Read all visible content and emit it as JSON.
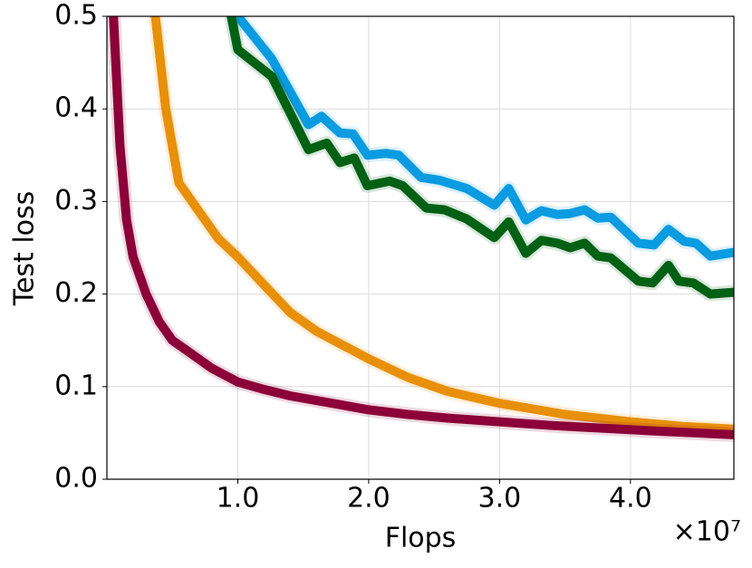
{
  "chart_data": {
    "type": "line",
    "xlabel": "Flops",
    "ylabel": "Test loss",
    "x_offset_label": "×10⁷",
    "xlim": [
      0,
      4.79
    ],
    "ylim": [
      0,
      0.5
    ],
    "xticks": [
      {
        "value": 1,
        "label": "1.0"
      },
      {
        "value": 2,
        "label": "2.0"
      },
      {
        "value": 3,
        "label": "3.0"
      },
      {
        "value": 4,
        "label": "4.0"
      }
    ],
    "yticks": [
      {
        "value": 0,
        "label": "0.0"
      },
      0.1,
      0.2,
      0.3,
      0.4,
      0.5
    ],
    "grid": true,
    "series": [
      {
        "color": "#0a9be0",
        "x": [
          1.0,
          1.26,
          1.54,
          1.64,
          1.78,
          1.88,
          1.99,
          2.13,
          2.23,
          2.4,
          2.54,
          2.75,
          2.96,
          3.07,
          3.2,
          3.32,
          3.44,
          3.54,
          3.65,
          3.75,
          3.85,
          4.06,
          4.18,
          4.29,
          4.41,
          4.5,
          4.61,
          4.79
        ],
        "values": [
          0.5,
          0.454,
          0.383,
          0.392,
          0.374,
          0.373,
          0.35,
          0.352,
          0.35,
          0.326,
          0.323,
          0.314,
          0.296,
          0.314,
          0.28,
          0.29,
          0.286,
          0.287,
          0.291,
          0.282,
          0.283,
          0.255,
          0.253,
          0.27,
          0.257,
          0.255,
          0.241,
          0.245
        ]
      },
      {
        "color": "#006014",
        "x": [
          0.95,
          1.0,
          1.26,
          1.54,
          1.68,
          1.78,
          1.89,
          1.99,
          2.16,
          2.26,
          2.44,
          2.58,
          2.75,
          2.96,
          3.07,
          3.2,
          3.32,
          3.44,
          3.54,
          3.65,
          3.75,
          3.85,
          4.06,
          4.17,
          4.29,
          4.37,
          4.48,
          4.61,
          4.79
        ],
        "values": [
          0.5,
          0.464,
          0.435,
          0.356,
          0.363,
          0.342,
          0.347,
          0.317,
          0.322,
          0.317,
          0.293,
          0.291,
          0.281,
          0.261,
          0.278,
          0.244,
          0.258,
          0.255,
          0.25,
          0.255,
          0.241,
          0.239,
          0.214,
          0.212,
          0.231,
          0.214,
          0.212,
          0.2,
          0.202
        ]
      },
      {
        "color": "#e8900a",
        "x": [
          0.37,
          0.45,
          0.55,
          0.7,
          0.85,
          1.0,
          1.2,
          1.4,
          1.6,
          1.8,
          2.0,
          2.3,
          2.6,
          3.0,
          3.5,
          4.0,
          4.4,
          4.79
        ],
        "values": [
          0.5,
          0.4,
          0.32,
          0.29,
          0.26,
          0.24,
          0.21,
          0.18,
          0.16,
          0.145,
          0.13,
          0.11,
          0.095,
          0.082,
          0.07,
          0.062,
          0.057,
          0.054
        ]
      },
      {
        "color": "#8b0038",
        "x": [
          0.05,
          0.1,
          0.15,
          0.2,
          0.3,
          0.4,
          0.5,
          0.6,
          0.7,
          0.8,
          1.0,
          1.2,
          1.4,
          1.6,
          1.8,
          2.0,
          2.3,
          2.6,
          3.0,
          3.4,
          3.8,
          4.2,
          4.5,
          4.79
        ],
        "values": [
          0.5,
          0.36,
          0.28,
          0.24,
          0.2,
          0.17,
          0.15,
          0.14,
          0.13,
          0.12,
          0.105,
          0.097,
          0.09,
          0.085,
          0.08,
          0.075,
          0.07,
          0.066,
          0.062,
          0.058,
          0.055,
          0.052,
          0.05,
          0.048
        ]
      }
    ]
  }
}
